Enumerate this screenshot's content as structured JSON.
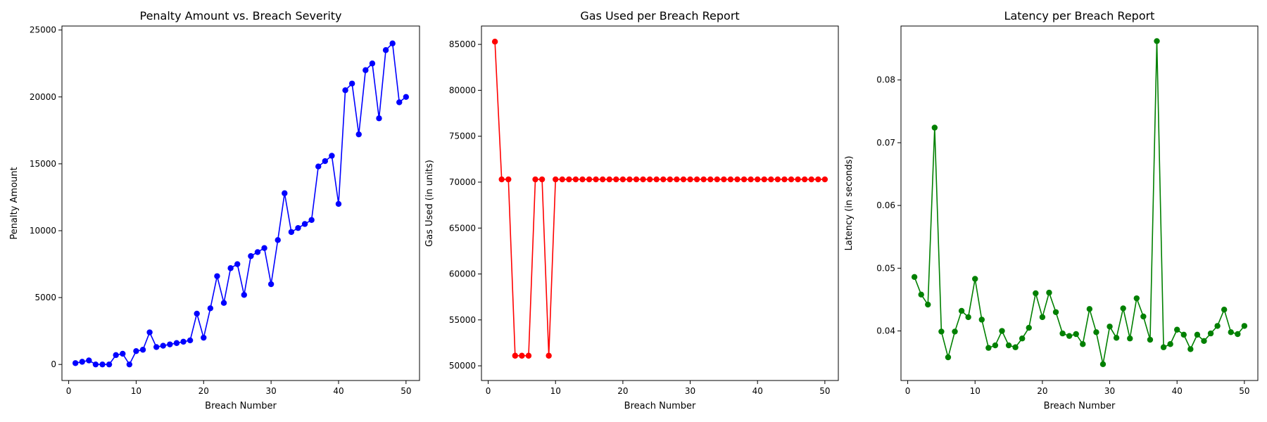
{
  "chart_data": [
    {
      "type": "line",
      "title": "Penalty Amount vs. Breach Severity",
      "xlabel": "Breach Number",
      "ylabel": "Penalty Amount",
      "color": "#0000ff",
      "marker": "circle",
      "xlim": [
        -1,
        52
      ],
      "ylim": [
        -1200,
        25300
      ],
      "xticks": [
        0,
        10,
        20,
        30,
        40,
        50
      ],
      "yticks": [
        0,
        5000,
        10000,
        15000,
        20000,
        25000
      ],
      "x": [
        1,
        2,
        3,
        4,
        5,
        6,
        7,
        8,
        9,
        10,
        11,
        12,
        13,
        14,
        15,
        16,
        17,
        18,
        19,
        20,
        21,
        22,
        23,
        24,
        25,
        26,
        27,
        28,
        29,
        30,
        31,
        32,
        33,
        34,
        35,
        36,
        37,
        38,
        39,
        40,
        41,
        42,
        43,
        44,
        45,
        46,
        47,
        48,
        49,
        50
      ],
      "y": [
        100,
        200,
        300,
        0,
        0,
        0,
        700,
        800,
        0,
        1000,
        1100,
        2400,
        1300,
        1400,
        1500,
        1600,
        1700,
        1800,
        3800,
        2000,
        4200,
        6600,
        4600,
        7200,
        7500,
        5200,
        8100,
        8400,
        8700,
        6000,
        9300,
        12800,
        9900,
        10200,
        10500,
        10800,
        14800,
        15200,
        15600,
        12000,
        20500,
        21000,
        17200,
        22000,
        22500,
        18400,
        23500,
        24000,
        19600,
        20000
      ],
      "grid": false
    },
    {
      "type": "line",
      "title": "Gas Used per Breach Report",
      "xlabel": "Breach Number",
      "ylabel": "Gas Used (in units)",
      "color": "#ff0000",
      "marker": "circle",
      "xlim": [
        -1,
        52
      ],
      "ylim": [
        48400,
        87000
      ],
      "xticks": [
        0,
        10,
        20,
        30,
        40,
        50
      ],
      "yticks": [
        50000,
        55000,
        60000,
        65000,
        70000,
        75000,
        80000,
        85000
      ],
      "x": [
        1,
        2,
        3,
        4,
        5,
        6,
        7,
        8,
        9,
        10,
        11,
        12,
        13,
        14,
        15,
        16,
        17,
        18,
        19,
        20,
        21,
        22,
        23,
        24,
        25,
        26,
        27,
        28,
        29,
        30,
        31,
        32,
        33,
        34,
        35,
        36,
        37,
        38,
        39,
        40,
        41,
        42,
        43,
        44,
        45,
        46,
        47,
        48,
        49,
        50
      ],
      "y": [
        85300,
        70300,
        70300,
        51100,
        51100,
        51100,
        70300,
        70300,
        51100,
        70300,
        70300,
        70300,
        70300,
        70300,
        70300,
        70300,
        70300,
        70300,
        70300,
        70300,
        70300,
        70300,
        70300,
        70300,
        70300,
        70300,
        70300,
        70300,
        70300,
        70300,
        70300,
        70300,
        70300,
        70300,
        70300,
        70300,
        70300,
        70300,
        70300,
        70300,
        70300,
        70300,
        70300,
        70300,
        70300,
        70300,
        70300,
        70300,
        70300,
        70300
      ],
      "grid": false
    },
    {
      "type": "line",
      "title": "Latency per Breach Report",
      "xlabel": "Breach Number",
      "ylabel": "Latency (in seconds)",
      "color": "#008000",
      "marker": "circle",
      "xlim": [
        -1,
        52
      ],
      "ylim": [
        0.0321,
        0.0886
      ],
      "xticks": [
        0,
        10,
        20,
        30,
        40,
        50
      ],
      "yticks": [
        0.04,
        0.05,
        0.06,
        0.07,
        0.08
      ],
      "x": [
        1,
        2,
        3,
        4,
        5,
        6,
        7,
        8,
        9,
        10,
        11,
        12,
        13,
        14,
        15,
        16,
        17,
        18,
        19,
        20,
        21,
        22,
        23,
        24,
        25,
        26,
        27,
        28,
        29,
        30,
        31,
        32,
        33,
        34,
        35,
        36,
        37,
        38,
        39,
        40,
        41,
        42,
        43,
        44,
        45,
        46,
        47,
        48,
        49,
        50
      ],
      "y": [
        0.0486,
        0.0458,
        0.0442,
        0.0724,
        0.0399,
        0.0358,
        0.0399,
        0.0432,
        0.0422,
        0.0483,
        0.0418,
        0.0373,
        0.0377,
        0.04,
        0.0377,
        0.0374,
        0.0388,
        0.0405,
        0.046,
        0.0422,
        0.0461,
        0.043,
        0.0396,
        0.0392,
        0.0395,
        0.0379,
        0.0435,
        0.0398,
        0.0347,
        0.0407,
        0.0389,
        0.0436,
        0.0388,
        0.0452,
        0.0423,
        0.0386,
        0.0862,
        0.0374,
        0.0379,
        0.0402,
        0.0394,
        0.0371,
        0.0394,
        0.0384,
        0.0396,
        0.0408,
        0.0434,
        0.0398,
        0.0395,
        0.0408
      ],
      "grid": false
    }
  ]
}
